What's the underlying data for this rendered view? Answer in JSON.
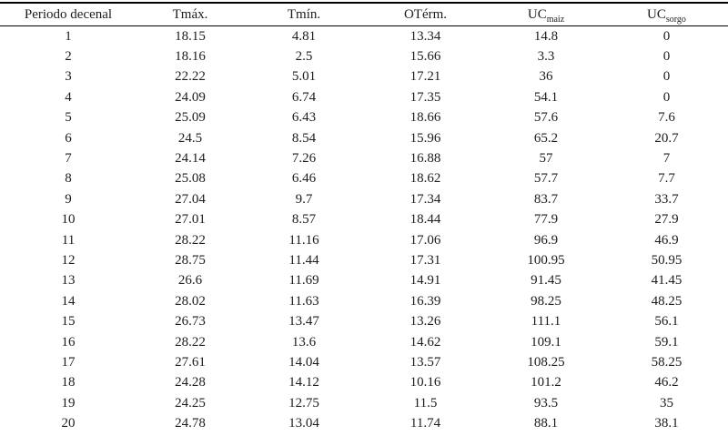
{
  "colors": {
    "background": "#ffffff",
    "text": "#1c1c1c",
    "rule": "#000000"
  },
  "table": {
    "headers": [
      {
        "text": "Periodo decenal"
      },
      {
        "text": "Tmáx."
      },
      {
        "text": "Tmín."
      },
      {
        "text": "OTérm."
      },
      {
        "text": "UC",
        "subscript": "maiz"
      },
      {
        "text": "UC",
        "subscript": "sorgo"
      }
    ],
    "rows": [
      [
        "1",
        "18.15",
        "4.81",
        "13.34",
        "14.8",
        "0"
      ],
      [
        "2",
        "18.16",
        "2.5",
        "15.66",
        "3.3",
        "0"
      ],
      [
        "3",
        "22.22",
        "5.01",
        "17.21",
        "36",
        "0"
      ],
      [
        "4",
        "24.09",
        "6.74",
        "17.35",
        "54.1",
        "0"
      ],
      [
        "5",
        "25.09",
        "6.43",
        "18.66",
        "57.6",
        "7.6"
      ],
      [
        "6",
        "24.5",
        "8.54",
        "15.96",
        "65.2",
        "20.7"
      ],
      [
        "7",
        "24.14",
        "7.26",
        "16.88",
        "57",
        "7"
      ],
      [
        "8",
        "25.08",
        "6.46",
        "18.62",
        "57.7",
        "7.7"
      ],
      [
        "9",
        "27.04",
        "9.7",
        "17.34",
        "83.7",
        "33.7"
      ],
      [
        "10",
        "27.01",
        "8.57",
        "18.44",
        "77.9",
        "27.9"
      ],
      [
        "11",
        "28.22",
        "11.16",
        "17.06",
        "96.9",
        "46.9"
      ],
      [
        "12",
        "28.75",
        "11.44",
        "17.31",
        "100.95",
        "50.95"
      ],
      [
        "13",
        "26.6",
        "11.69",
        "14.91",
        "91.45",
        "41.45"
      ],
      [
        "14",
        "28.02",
        "11.63",
        "16.39",
        "98.25",
        "48.25"
      ],
      [
        "15",
        "26.73",
        "13.47",
        "13.26",
        "111.1",
        "56.1"
      ],
      [
        "16",
        "28.22",
        "13.6",
        "14.62",
        "109.1",
        "59.1"
      ],
      [
        "17",
        "27.61",
        "14.04",
        "13.57",
        "108.25",
        "58.25"
      ],
      [
        "18",
        "24.28",
        "14.12",
        "10.16",
        "101.2",
        "46.2"
      ],
      [
        "19",
        "24.25",
        "12.75",
        "11.5",
        "93.5",
        "35"
      ],
      [
        "20",
        "24.78",
        "13.04",
        "11.74",
        "88.1",
        "38.1"
      ]
    ]
  }
}
